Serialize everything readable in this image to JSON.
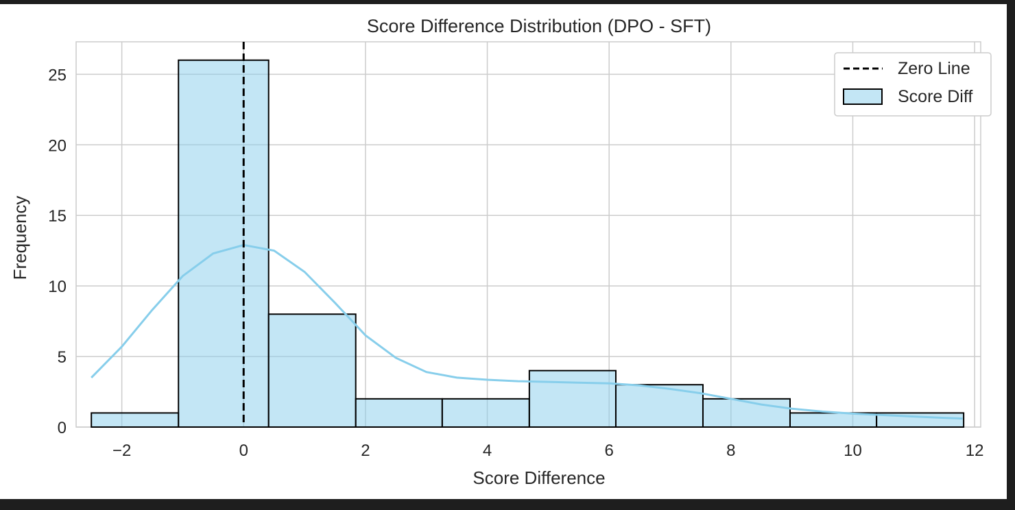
{
  "chart_data": {
    "type": "bar",
    "title": "Score Difference Distribution (DPO - SFT)",
    "xlabel": "Score Difference",
    "ylabel": "Frequency",
    "xlim": [
      -2.75,
      12.1
    ],
    "ylim": [
      0,
      27.3
    ],
    "xticks": [
      -2,
      0,
      2,
      4,
      6,
      8,
      10,
      12
    ],
    "xtick_labels": [
      "−2",
      "0",
      "2",
      "4",
      "6",
      "8",
      "10",
      "12"
    ],
    "yticks": [
      0,
      5,
      10,
      15,
      20,
      25
    ],
    "ytick_labels": [
      "0",
      "5",
      "10",
      "15",
      "20",
      "25"
    ],
    "grid": true,
    "legend_position": "top-right",
    "bins": [
      {
        "x0": -2.5,
        "x1": -1.07,
        "count": 1
      },
      {
        "x0": -1.07,
        "x1": 0.41,
        "count": 26
      },
      {
        "x0": 0.41,
        "x1": 1.84,
        "count": 8
      },
      {
        "x0": 1.84,
        "x1": 3.26,
        "count": 2
      },
      {
        "x0": 3.26,
        "x1": 4.69,
        "count": 2
      },
      {
        "x0": 4.69,
        "x1": 6.11,
        "count": 4
      },
      {
        "x0": 6.11,
        "x1": 7.54,
        "count": 3
      },
      {
        "x0": 7.54,
        "x1": 8.97,
        "count": 2
      },
      {
        "x0": 8.97,
        "x1": 10.39,
        "count": 1
      },
      {
        "x0": 10.39,
        "x1": 11.82,
        "count": 1
      }
    ],
    "series": [
      {
        "name": "Score Diff",
        "kind": "histogram",
        "color": "#87ceeb"
      },
      {
        "name": "Zero Line",
        "kind": "vline",
        "x": 0,
        "color": "#000000",
        "style": "dashed"
      }
    ],
    "kde": {
      "color": "#87ceeb",
      "points": [
        [
          -2.5,
          3.5
        ],
        [
          -2.0,
          5.7
        ],
        [
          -1.5,
          8.3
        ],
        [
          -1.0,
          10.7
        ],
        [
          -0.5,
          12.3
        ],
        [
          0.0,
          12.9
        ],
        [
          0.5,
          12.5
        ],
        [
          1.0,
          11.0
        ],
        [
          1.5,
          8.8
        ],
        [
          2.0,
          6.5
        ],
        [
          2.5,
          4.9
        ],
        [
          3.0,
          3.9
        ],
        [
          3.5,
          3.5
        ],
        [
          4.0,
          3.35
        ],
        [
          4.5,
          3.25
        ],
        [
          5.0,
          3.2
        ],
        [
          5.5,
          3.15
        ],
        [
          6.0,
          3.1
        ],
        [
          6.5,
          2.95
        ],
        [
          7.0,
          2.7
        ],
        [
          7.5,
          2.4
        ],
        [
          8.0,
          2.0
        ],
        [
          8.5,
          1.6
        ],
        [
          9.0,
          1.3
        ],
        [
          9.5,
          1.1
        ],
        [
          10.0,
          0.95
        ],
        [
          10.5,
          0.85
        ],
        [
          11.0,
          0.75
        ],
        [
          11.5,
          0.65
        ],
        [
          11.8,
          0.6
        ]
      ]
    }
  }
}
